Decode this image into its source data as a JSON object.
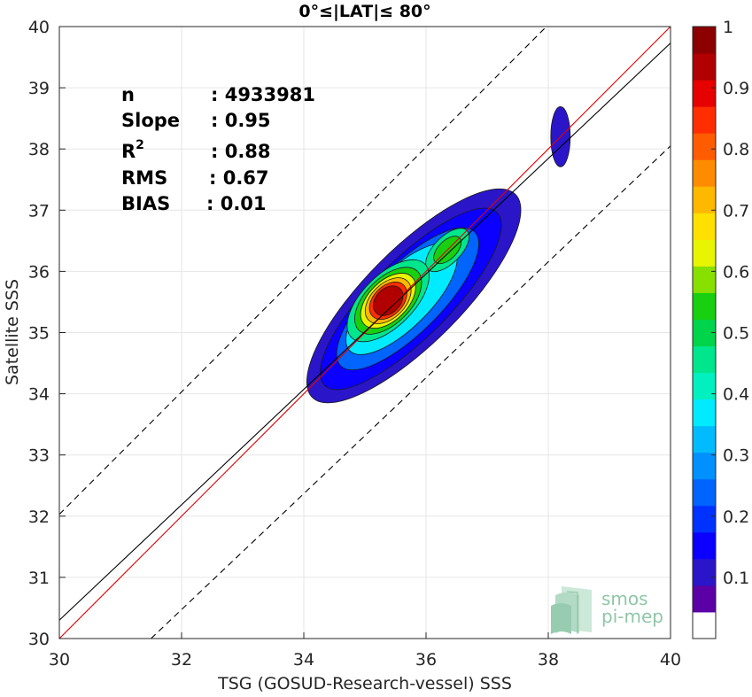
{
  "chart_data": {
    "type": "heatmap",
    "title": "0°≤|LAT|≤ 80°",
    "xlabel": "TSG (GOSUD-Research-vessel) SSS",
    "ylabel": "Satellite SSS",
    "xlim": [
      30,
      40
    ],
    "ylim": [
      30,
      40
    ],
    "xticks": [
      "30",
      "32",
      "34",
      "36",
      "38",
      "40"
    ],
    "yticks": [
      "30",
      "31",
      "32",
      "33",
      "34",
      "35",
      "36",
      "37",
      "38",
      "39",
      "40"
    ],
    "grid": true,
    "stats": [
      {
        "label": "n",
        "value": ": 4933981"
      },
      {
        "label": "Slope",
        "value": ": 0.95"
      },
      {
        "label": "R",
        "sup": "2",
        "value": ": 0.88"
      },
      {
        "label": "RMS",
        "value": ": 0.67"
      },
      {
        "label": "BIAS",
        "value": ": 0.01"
      }
    ],
    "lines": [
      {
        "name": "identity",
        "color": "#e00000",
        "points": [
          [
            30,
            30
          ],
          [
            40,
            40
          ]
        ]
      },
      {
        "name": "regression fit",
        "color": "#000000",
        "points": [
          [
            30,
            30.3
          ],
          [
            40,
            39.73
          ]
        ]
      },
      {
        "name": "upper bound",
        "color": "#000000",
        "dashed": true,
        "points": [
          [
            30,
            32.03
          ],
          [
            40,
            42.03
          ]
        ]
      },
      {
        "name": "lower bound",
        "color": "#000000",
        "dashed": true,
        "points": [
          [
            31.5,
            30
          ],
          [
            40,
            38.05
          ]
        ]
      }
    ],
    "density_peak": {
      "x": 35.35,
      "y": 35.5
    },
    "secondary_peak": {
      "x": 36.35,
      "y": 36.35
    },
    "isolated_blob": {
      "x": 38.2,
      "y": 38.2
    },
    "contour_levels": [
      0.05,
      0.1,
      0.2,
      0.3,
      0.4,
      0.5,
      0.6,
      0.7,
      0.8,
      0.9
    ],
    "colorbar": {
      "range": [
        0,
        1
      ],
      "ticks": [
        "0.1",
        "0.2",
        "0.3",
        "0.4",
        "0.5",
        "0.6",
        "0.7",
        "0.8",
        "0.9",
        "1"
      ],
      "colors": [
        "#ffffff",
        "#5a00a6",
        "#2a16c8",
        "#0b00ff",
        "#0032ff",
        "#0064ff",
        "#0090ff",
        "#00bcff",
        "#00ebff",
        "#00f0c0",
        "#00e68c",
        "#00d44a",
        "#18d010",
        "#88e000",
        "#e8f500",
        "#ffe000",
        "#ffb800",
        "#ff8c00",
        "#ff5c00",
        "#ff2d00",
        "#e60000",
        "#b00000",
        "#8c0000"
      ]
    }
  },
  "logo": {
    "line1": "smos",
    "line2": "pi-mep"
  }
}
